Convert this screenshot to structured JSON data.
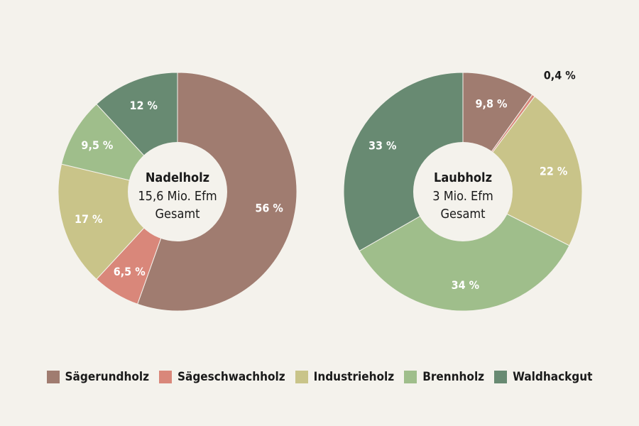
{
  "chart_data": [
    {
      "type": "pie",
      "center_title": "Nadelholz",
      "center_lines": [
        "15,6 Mio. Efm",
        "Gesamt"
      ],
      "slices": [
        {
          "name": "Sägerundholz",
          "value": 56,
          "label": "56 %",
          "color": "#a07c70"
        },
        {
          "name": "Sägeschwachholz",
          "value": 6.5,
          "label": "6,5 %",
          "color": "#d9877a"
        },
        {
          "name": "Industrieholz",
          "value": 17,
          "label": "17 %",
          "color": "#c9c489"
        },
        {
          "name": "Brennholz",
          "value": 9.5,
          "label": "9,5 %",
          "color": "#9fbe8b"
        },
        {
          "name": "Waldhackgut",
          "value": 12,
          "label": "12 %",
          "color": "#688a72"
        }
      ]
    },
    {
      "type": "pie",
      "center_title": "Laubholz",
      "center_lines": [
        "3 Mio. Efm",
        "Gesamt"
      ],
      "slices": [
        {
          "name": "Sägerundholz",
          "value": 9.8,
          "label": "9,8 %",
          "color": "#a07c70"
        },
        {
          "name": "Sägeschwachholz",
          "value": 0.4,
          "label": "0,4 %",
          "color": "#d9877a",
          "label_outside": true
        },
        {
          "name": "Industrieholz",
          "value": 22,
          "label": "22 %",
          "color": "#c9c489"
        },
        {
          "name": "Brennholz",
          "value": 34,
          "label": "34 %",
          "color": "#9fbe8b"
        },
        {
          "name": "Waldhackgut",
          "value": 33,
          "label": "33 %",
          "color": "#688a72"
        }
      ]
    }
  ],
  "legend": [
    {
      "label": "Sägerundholz",
      "color": "#a07c70"
    },
    {
      "label": "Sägeschwachholz",
      "color": "#d9877a"
    },
    {
      "label": "Industrieholz",
      "color": "#c9c489"
    },
    {
      "label": "Brennholz",
      "color": "#9fbe8b"
    },
    {
      "label": "Waldhackgut",
      "color": "#688a72"
    }
  ]
}
